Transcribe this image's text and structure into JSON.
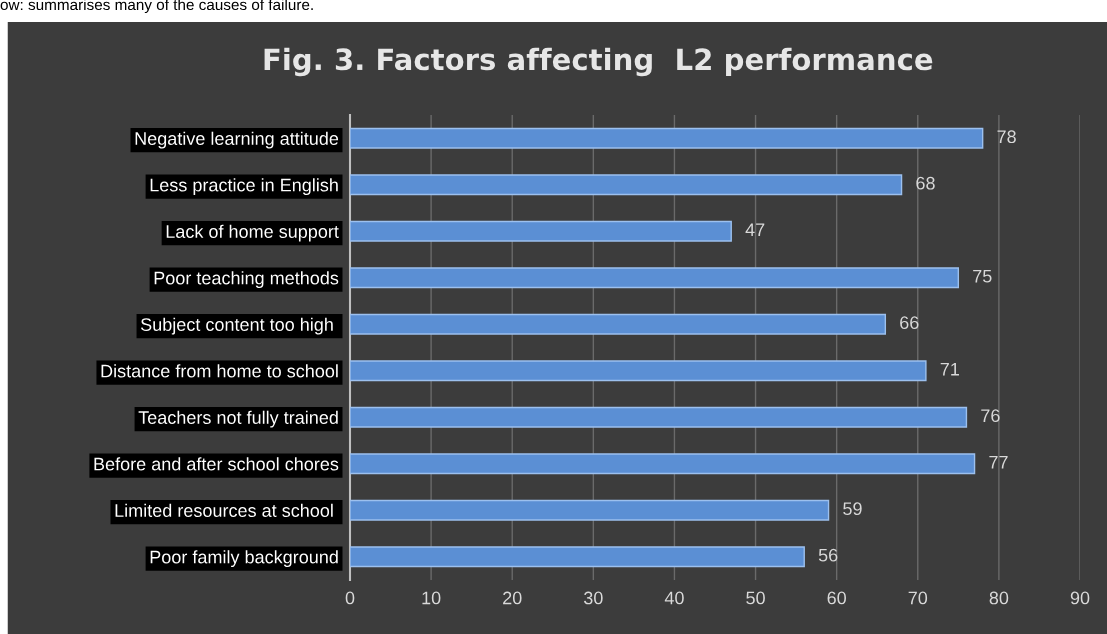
{
  "chart_data": {
    "type": "bar",
    "orientation": "horizontal",
    "title": "Fig. 3. Factors affecting  L2 performance",
    "annotations": [
      "ow: summarises many of the causes of failure."
    ],
    "categories": [
      "Negative learning attitude",
      "Less practice in English",
      "Lack of home support",
      "Poor teaching methods",
      "Subject content too high ",
      "Distance from home to school",
      "Teachers not fully trained",
      "Before and after school chores",
      "Limited resources at school ",
      "Poor family background"
    ],
    "values": [
      78,
      68,
      47,
      75,
      66,
      71,
      76,
      77,
      59,
      56
    ],
    "color": "#5b8fd4",
    "xlim": [
      0,
      90
    ],
    "xticks": [
      0,
      10,
      20,
      30,
      40,
      50,
      60,
      70,
      80,
      90
    ],
    "grid": "x",
    "data_labels": true
  }
}
